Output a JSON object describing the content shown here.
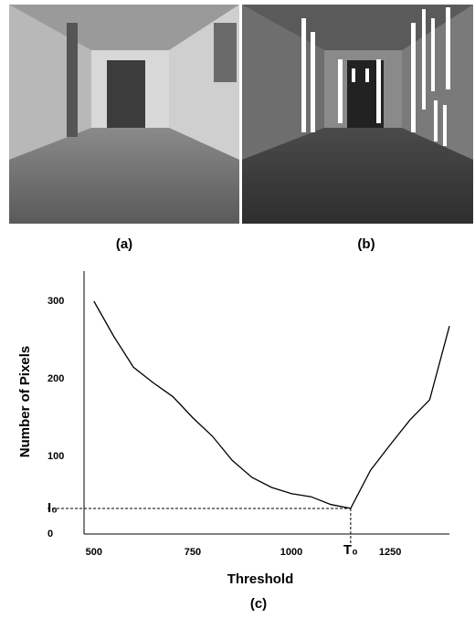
{
  "panels": [
    "(a)",
    "(b)"
  ],
  "chart_data": {
    "type": "line",
    "caption": "(c)",
    "x_label": "Threshold",
    "y_label": "Number of Pixels",
    "x": [
      500,
      550,
      600,
      650,
      700,
      750,
      800,
      850,
      900,
      950,
      1000,
      1050,
      1100,
      1150,
      1200,
      1250,
      1300,
      1350,
      1400
    ],
    "series": [
      {
        "color": "#000000",
        "values": [
          300,
          255,
          215,
          195,
          177,
          150,
          126,
          95,
          73,
          60,
          52,
          48,
          38,
          33,
          82,
          115,
          147,
          173,
          268
        ]
      }
    ],
    "xlim": [
      475,
      1400
    ],
    "ylim": [
      0,
      340
    ],
    "xticks": [
      500,
      750,
      1000,
      {
        "value": 1150,
        "label": "T₀"
      },
      1250
    ],
    "yticks": [
      0,
      {
        "value": 33,
        "label": "I₀"
      },
      100,
      200,
      300
    ],
    "grid": false
  }
}
